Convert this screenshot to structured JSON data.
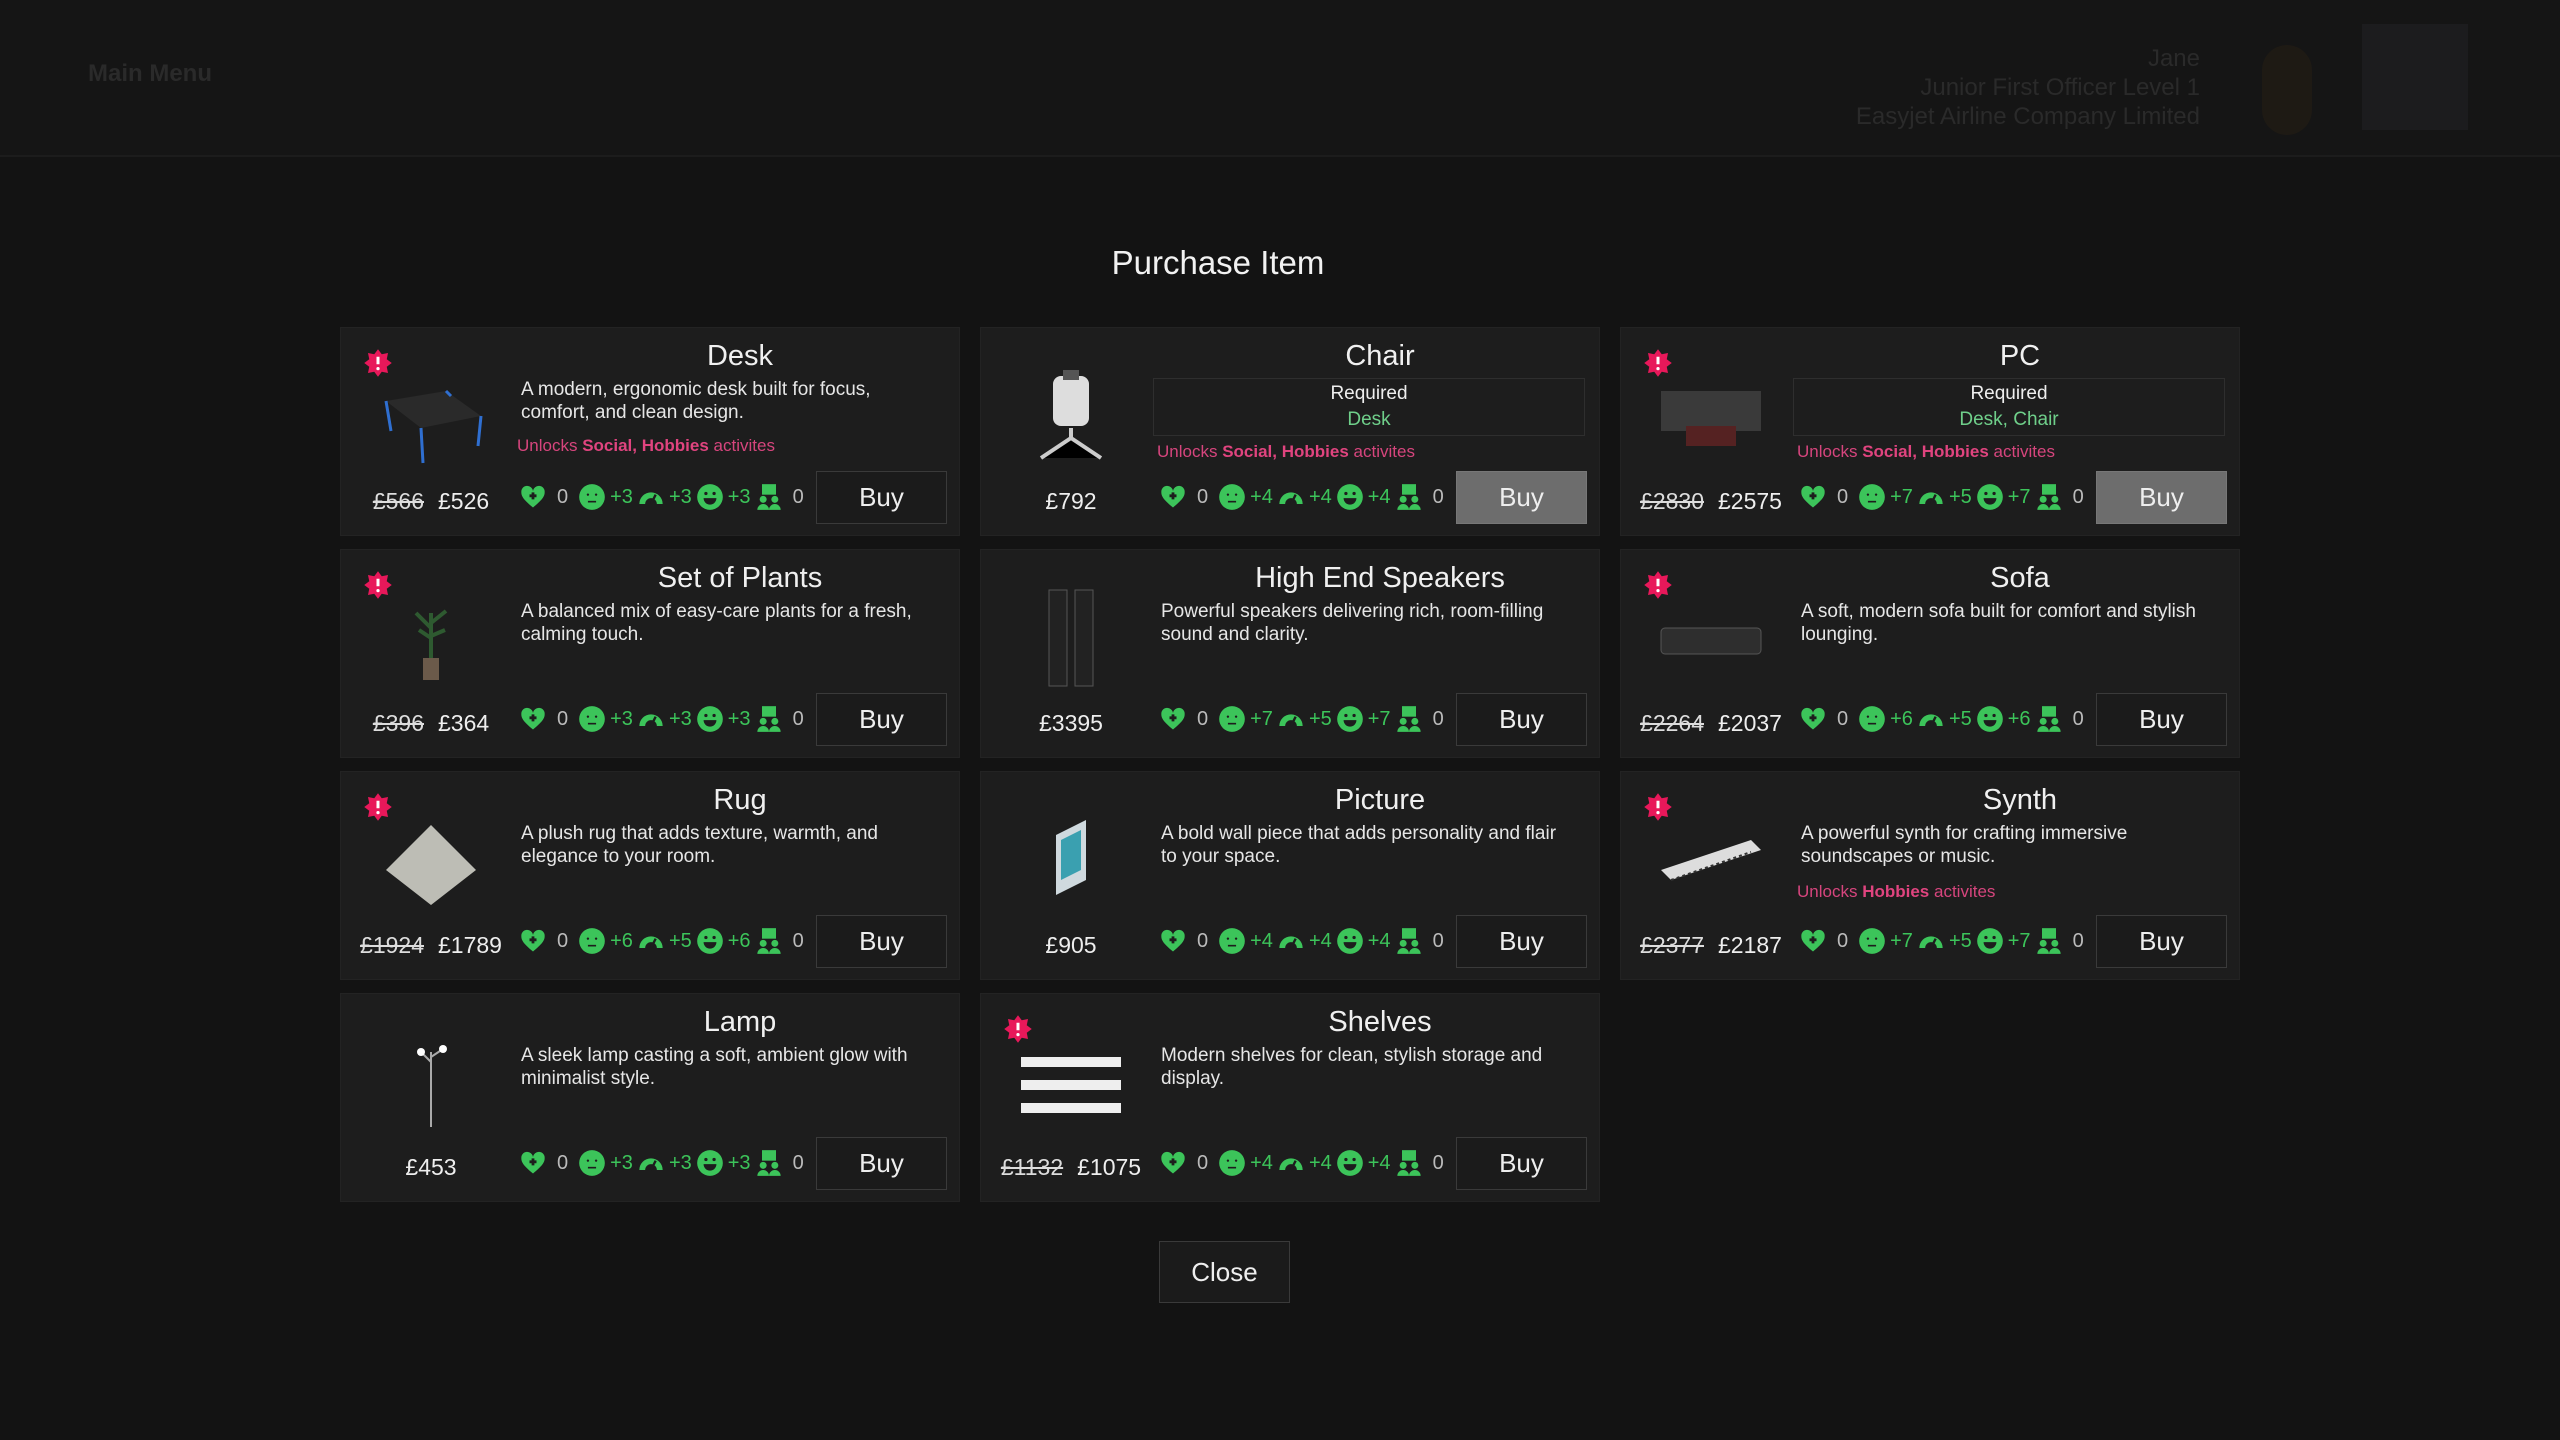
{
  "topbar": {
    "menu": "Main Menu",
    "name": "Jane",
    "rank": "Junior First Officer Level 1",
    "company": "Easyjet Airline Company Limited"
  },
  "title": "Purchase Item",
  "close_label": "Close",
  "colors": {
    "stat": "#3cc45a",
    "unlock": "#d6457d",
    "badge": "#e8185a"
  },
  "items": [
    {
      "name": "Desk",
      "old": "£566",
      "price": "£526",
      "desc": "A modern, ergonomic desk built for focus, comfort, and clean design.",
      "unlock": [
        "Unlocks",
        "Social, Hobbies",
        "activites"
      ],
      "stats": [
        "0",
        "+3",
        "+3",
        "+3",
        "0"
      ],
      "buy": "Buy",
      "badge": true
    },
    {
      "name": "Chair",
      "price": "£792",
      "req_label": "Required",
      "req": "Desk",
      "unlock": [
        "Unlocks",
        "Social, Hobbies",
        "activites"
      ],
      "stats": [
        "0",
        "+4",
        "+4",
        "+4",
        "0"
      ],
      "buy": "Buy",
      "disabled": true
    },
    {
      "name": "PC",
      "old": "£2830",
      "price": "£2575",
      "req_label": "Required",
      "req": "Desk, Chair",
      "unlock": [
        "Unlocks",
        "Social, Hobbies",
        "activites"
      ],
      "stats": [
        "0",
        "+7",
        "+5",
        "+7",
        "0"
      ],
      "buy": "Buy",
      "disabled": true,
      "badge": true
    },
    {
      "name": "Set of Plants",
      "old": "£396",
      "price": "£364",
      "desc": "A balanced mix of easy-care plants for a fresh, calming touch.",
      "stats": [
        "0",
        "+3",
        "+3",
        "+3",
        "0"
      ],
      "buy": "Buy",
      "badge": true
    },
    {
      "name": "High End Speakers",
      "price": "£3395",
      "desc": "Powerful speakers delivering rich, room-filling sound and clarity.",
      "stats": [
        "0",
        "+7",
        "+5",
        "+7",
        "0"
      ],
      "buy": "Buy"
    },
    {
      "name": "Sofa",
      "old": "£2264",
      "price": "£2037",
      "desc": "A soft, modern sofa built for comfort and stylish lounging.",
      "stats": [
        "0",
        "+6",
        "+5",
        "+6",
        "0"
      ],
      "buy": "Buy",
      "badge": true
    },
    {
      "name": "Rug",
      "old": "£1924",
      "price": "£1789",
      "desc": "A plush rug that adds texture, warmth, and elegance to your room.",
      "stats": [
        "0",
        "+6",
        "+5",
        "+6",
        "0"
      ],
      "buy": "Buy",
      "badge": true
    },
    {
      "name": "Picture",
      "price": "£905",
      "desc": "A bold wall piece that adds personality and flair to your space.",
      "stats": [
        "0",
        "+4",
        "+4",
        "+4",
        "0"
      ],
      "buy": "Buy"
    },
    {
      "name": "Synth",
      "old": "£2377",
      "price": "£2187",
      "desc": "A powerful synth for crafting immersive soundscapes or music.",
      "unlock": [
        "Unlocks",
        "Hobbies",
        "activites"
      ],
      "stats": [
        "0",
        "+7",
        "+5",
        "+7",
        "0"
      ],
      "buy": "Buy",
      "badge": true
    },
    {
      "name": "Lamp",
      "price": "£453",
      "desc": "A sleek lamp casting a soft, ambient glow with minimalist style.",
      "stats": [
        "0",
        "+3",
        "+3",
        "+3",
        "0"
      ],
      "buy": "Buy"
    },
    {
      "name": "Shelves",
      "old": "£1132",
      "price": "£1075",
      "desc": "Modern shelves for clean, stylish storage and display.",
      "stats": [
        "0",
        "+4",
        "+4",
        "+4",
        "0"
      ],
      "buy": "Buy",
      "badge": true
    }
  ]
}
